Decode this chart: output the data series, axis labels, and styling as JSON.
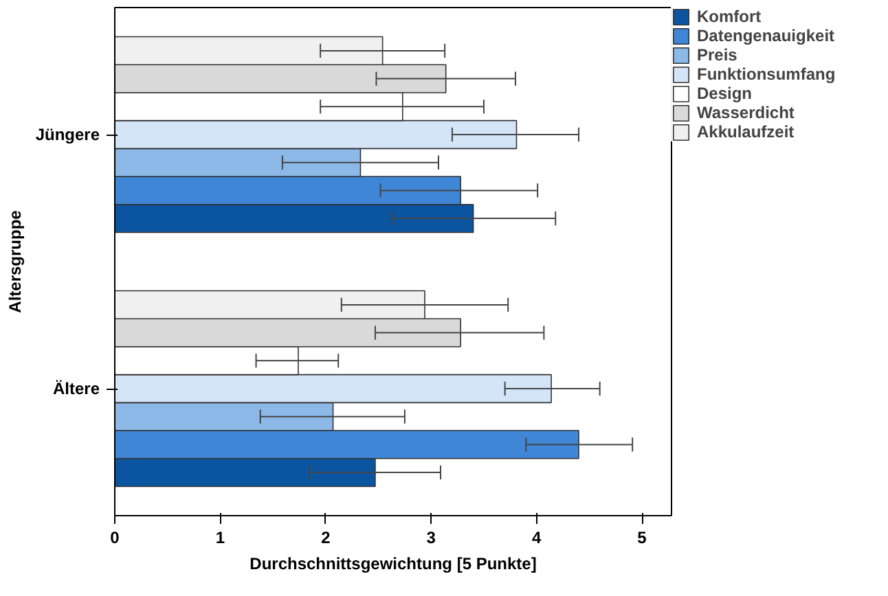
{
  "chart_data": {
    "type": "bar",
    "orientation": "horizontal",
    "xlabel": "Durchschnittsgewichtung [5 Punkte]",
    "ylabel": "Altersgruppe",
    "categories": [
      "Jüngere",
      "Ältere"
    ],
    "xlim": [
      0,
      5.28
    ],
    "xticks": [
      0,
      1,
      2,
      3,
      4,
      5
    ],
    "grid": false,
    "legend": "top right",
    "series": [
      {
        "name": "Komfort",
        "color": "#0b55a0",
        "values": [
          3.4,
          2.47
        ],
        "errors": [
          [
            2.63,
            4.18
          ],
          [
            1.85,
            3.09
          ]
        ]
      },
      {
        "name": "Datengenauigkeit",
        "color": "#3f87d6",
        "values": [
          3.28,
          4.4
        ],
        "errors": [
          [
            2.52,
            4.01
          ],
          [
            3.9,
            4.91
          ]
        ]
      },
      {
        "name": "Preis",
        "color": "#8db9e8",
        "values": [
          2.33,
          2.07
        ],
        "errors": [
          [
            1.59,
            3.07
          ],
          [
            1.38,
            2.75
          ]
        ]
      },
      {
        "name": "Funktionsumfang",
        "color": "#d4e5f7",
        "values": [
          3.81,
          4.14
        ],
        "errors": [
          [
            3.2,
            4.4
          ],
          [
            3.7,
            4.6
          ]
        ]
      },
      {
        "name": "Design",
        "color": "#ffffff",
        "values": [
          2.73,
          1.74
        ],
        "errors": [
          [
            1.95,
            3.5
          ],
          [
            1.34,
            2.12
          ]
        ]
      },
      {
        "name": "Wasserdicht",
        "color": "#d9d9d9",
        "values": [
          3.14,
          3.28
        ],
        "errors": [
          [
            2.48,
            3.8
          ],
          [
            2.47,
            4.07
          ]
        ]
      },
      {
        "name": "Akkulaufzeit",
        "color": "#f0f0f0",
        "values": [
          2.54,
          2.94
        ],
        "errors": [
          [
            1.95,
            3.13
          ],
          [
            2.15,
            3.73
          ]
        ]
      }
    ]
  }
}
